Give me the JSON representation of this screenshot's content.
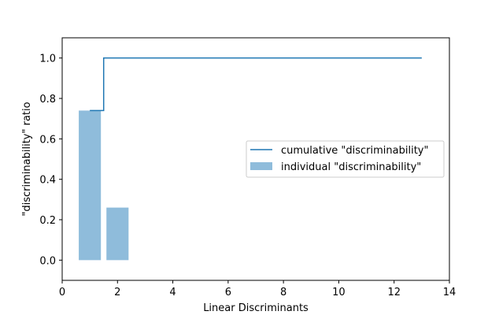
{
  "chart_data": {
    "type": "bar",
    "xlabel": "Linear Discriminants",
    "ylabel": "\"discriminability\" ratio",
    "xlim": [
      0,
      14.0
    ],
    "ylim": [
      -0.1,
      1.1
    ],
    "xticks": [
      0,
      2,
      4,
      6,
      8,
      10,
      12,
      14
    ],
    "xtick_labels": [
      "0",
      "2",
      "4",
      "6",
      "8",
      "10",
      "12",
      "14"
    ],
    "yticks": [
      0.0,
      0.2,
      0.4,
      0.6,
      0.8,
      1.0
    ],
    "ytick_labels": [
      "0.0",
      "0.2",
      "0.4",
      "0.6",
      "0.8",
      "1.0"
    ],
    "grid": false,
    "legend_position": "center-right",
    "bar_color": "#8fbcdb",
    "line_color": "#1f77b4",
    "series": [
      {
        "name": "cumulative \"discriminability\"",
        "type": "step",
        "x": [
          1,
          2,
          3,
          4,
          5,
          6,
          7,
          8,
          9,
          10,
          11,
          12,
          13
        ],
        "values": [
          0.74,
          1.0,
          1.0,
          1.0,
          1.0,
          1.0,
          1.0,
          1.0,
          1.0,
          1.0,
          1.0,
          1.0,
          1.0
        ]
      },
      {
        "name": "individual \"discriminability\"",
        "type": "bar",
        "x": [
          1,
          2,
          3,
          4,
          5,
          6,
          7,
          8,
          9,
          10,
          11,
          12,
          13
        ],
        "values": [
          0.74,
          0.26,
          0,
          0,
          0,
          0,
          0,
          0,
          0,
          0,
          0,
          0,
          0
        ]
      }
    ]
  }
}
